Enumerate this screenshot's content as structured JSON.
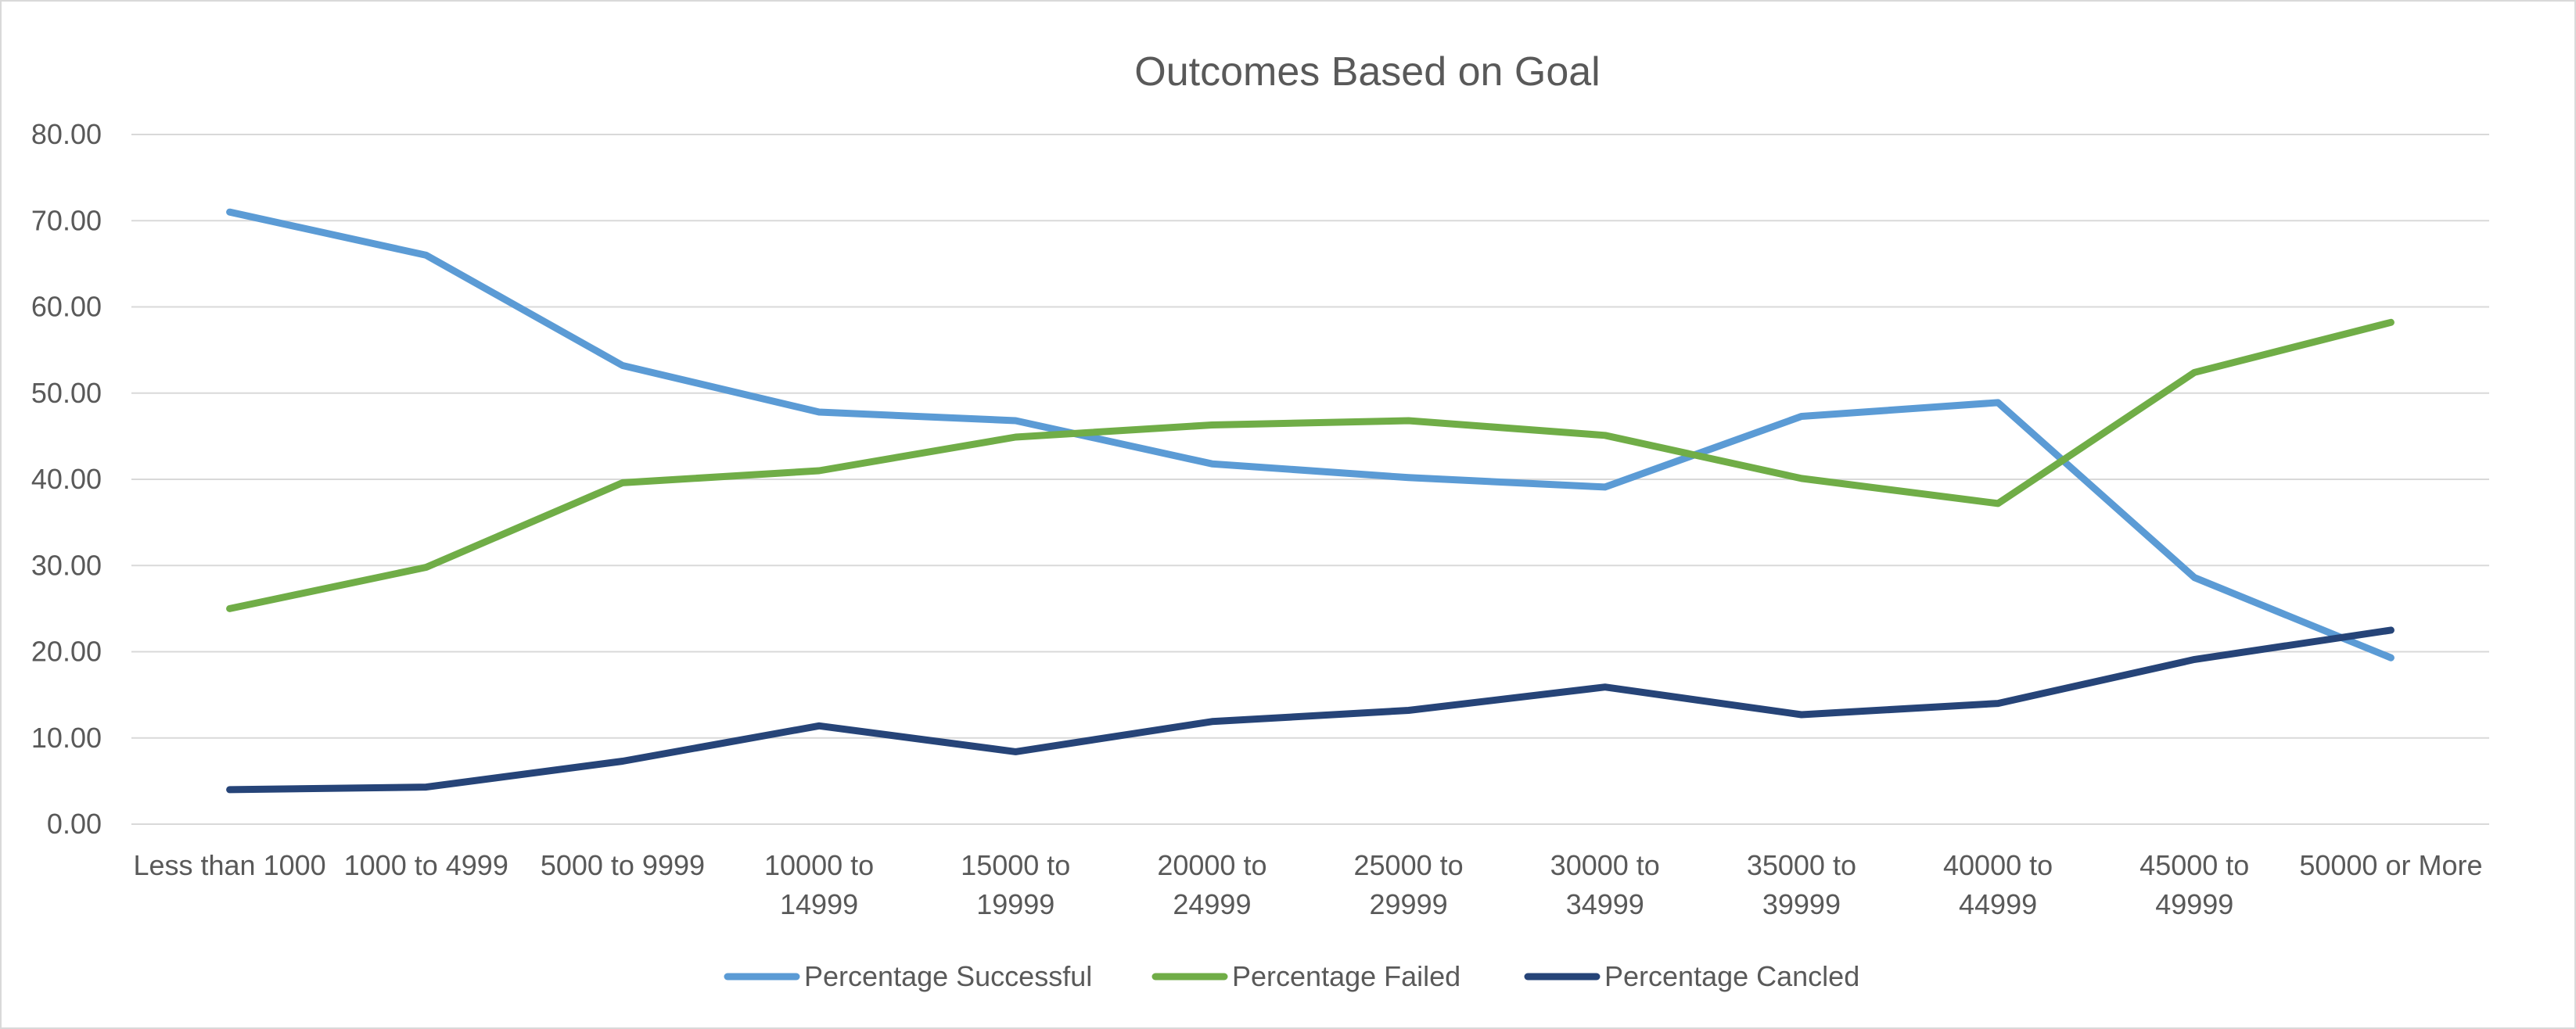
{
  "chart_data": {
    "type": "line",
    "title": "Outcomes Based on Goal",
    "xlabel": "",
    "ylabel": "",
    "ylim": [
      0,
      80
    ],
    "yticks": [
      "0.00",
      "10.00",
      "20.00",
      "30.00",
      "40.00",
      "50.00",
      "60.00",
      "70.00",
      "80.00"
    ],
    "grid": true,
    "legend_position": "bottom",
    "categories": [
      [
        "Less than 1000"
      ],
      [
        "1000 to 4999"
      ],
      [
        "5000 to 9999"
      ],
      [
        "10000 to",
        "14999"
      ],
      [
        "15000 to",
        "19999"
      ],
      [
        "20000 to",
        "24999"
      ],
      [
        "25000 to",
        "29999"
      ],
      [
        "30000 to",
        "34999"
      ],
      [
        "35000 to",
        "39999"
      ],
      [
        "40000 to",
        "44999"
      ],
      [
        "45000 to",
        "49999"
      ],
      [
        "50000 or More"
      ]
    ],
    "series": [
      {
        "name": "Percentage Successful",
        "color": "#5b9bd5",
        "values": [
          71.0,
          66.0,
          53.2,
          47.8,
          46.8,
          41.8,
          40.2,
          39.1,
          47.3,
          48.9,
          28.6,
          19.3
        ]
      },
      {
        "name": "Percentage Failed",
        "color": "#70ad47",
        "values": [
          25.0,
          29.8,
          39.6,
          41.0,
          44.9,
          46.3,
          46.8,
          45.1,
          40.1,
          37.2,
          52.4,
          58.2
        ]
      },
      {
        "name": "Percentage Cancled",
        "color": "#264478",
        "values": [
          4.0,
          4.3,
          7.3,
          11.4,
          8.4,
          11.9,
          13.2,
          15.9,
          12.7,
          14.0,
          19.1,
          22.5
        ]
      }
    ]
  }
}
